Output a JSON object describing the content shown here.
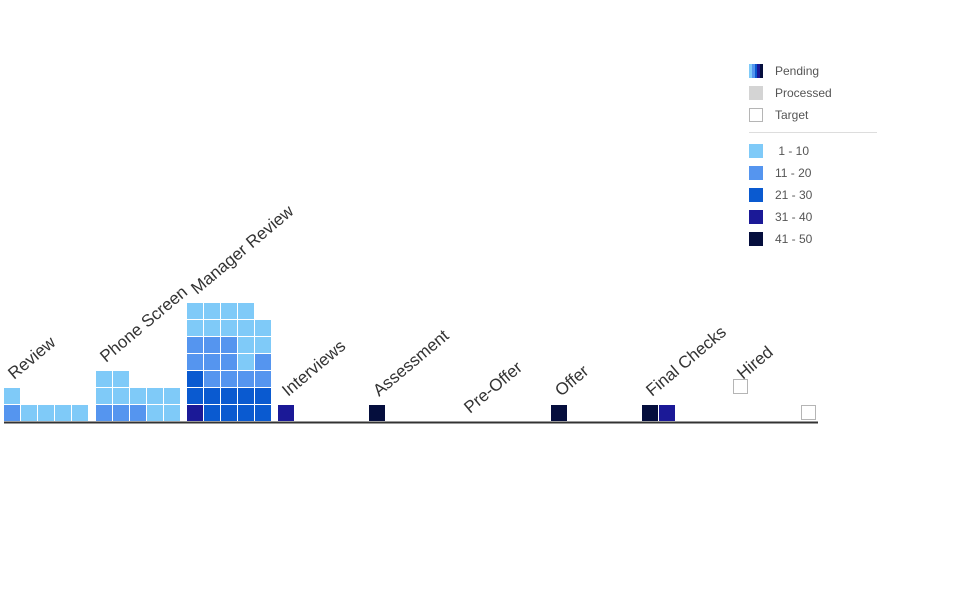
{
  "colors": {
    "range_1_10": "#7fcaf8",
    "range_11_20": "#5595ef",
    "range_21_30": "#0a5ad0",
    "range_31_40": "#1b1997",
    "range_41_50": "#050e3d",
    "processed": "#d4d4d4",
    "target_border": "#b5b5b5",
    "axis": "#333333"
  },
  "legend": {
    "status": [
      {
        "label": "Pending",
        "swatch": "pending"
      },
      {
        "label": "Processed",
        "swatch": "processed"
      },
      {
        "label": "Target",
        "swatch": "target"
      }
    ],
    "ranges": [
      {
        "label": " 1 - 10",
        "color": "#7fcaf8"
      },
      {
        "label": "11 - 20",
        "color": "#5595ef"
      },
      {
        "label": "21 - 30",
        "color": "#0a5ad0"
      },
      {
        "label": "31 - 40",
        "color": "#1b1997"
      },
      {
        "label": "41 - 50",
        "color": "#050e3d"
      }
    ]
  },
  "chart_data": {
    "type": "waffle",
    "title": "",
    "cell_value_ranges": [
      "1 - 10",
      "11 - 20",
      "21 - 30",
      "31 - 40",
      "41 - 50"
    ],
    "stages": [
      {
        "name": "Review",
        "columns": [
          [
            "11-20",
            "1-10"
          ],
          [
            "1-10"
          ],
          [
            "1-10"
          ],
          [
            "1-10"
          ],
          [
            "1-10"
          ]
        ]
      },
      {
        "name": "Phone Screen",
        "columns": [
          [
            "11-20",
            "1-10",
            "1-10"
          ],
          [
            "11-20",
            "1-10",
            "1-10"
          ],
          [
            "11-20",
            "1-10"
          ],
          [
            "1-10",
            "1-10"
          ],
          [
            "1-10",
            "1-10"
          ]
        ]
      },
      {
        "name": "Manager Review",
        "columns": [
          [
            "31-40",
            "21-30",
            "21-30",
            "11-20",
            "11-20",
            "1-10",
            "1-10"
          ],
          [
            "21-30",
            "21-30",
            "11-20",
            "11-20",
            "11-20",
            "1-10",
            "1-10"
          ],
          [
            "21-30",
            "21-30",
            "11-20",
            "11-20",
            "11-20",
            "1-10",
            "1-10"
          ],
          [
            "21-30",
            "21-30",
            "11-20",
            "1-10",
            "1-10",
            "1-10",
            "1-10"
          ],
          [
            "21-30",
            "21-30",
            "11-20",
            "11-20",
            "1-10",
            "1-10"
          ]
        ]
      },
      {
        "name": "Interviews",
        "columns": [
          [
            "31-40"
          ]
        ]
      },
      {
        "name": "Assessment",
        "columns": [
          [
            "41-50"
          ]
        ]
      },
      {
        "name": "Pre-Offer",
        "columns": []
      },
      {
        "name": "Offer",
        "columns": [
          [
            "41-50"
          ]
        ]
      },
      {
        "name": "Final Checks",
        "columns": [
          [
            "41-50"
          ],
          [
            "31-40"
          ]
        ]
      },
      {
        "name": "Hired",
        "columns": [],
        "targets": 2
      }
    ]
  }
}
